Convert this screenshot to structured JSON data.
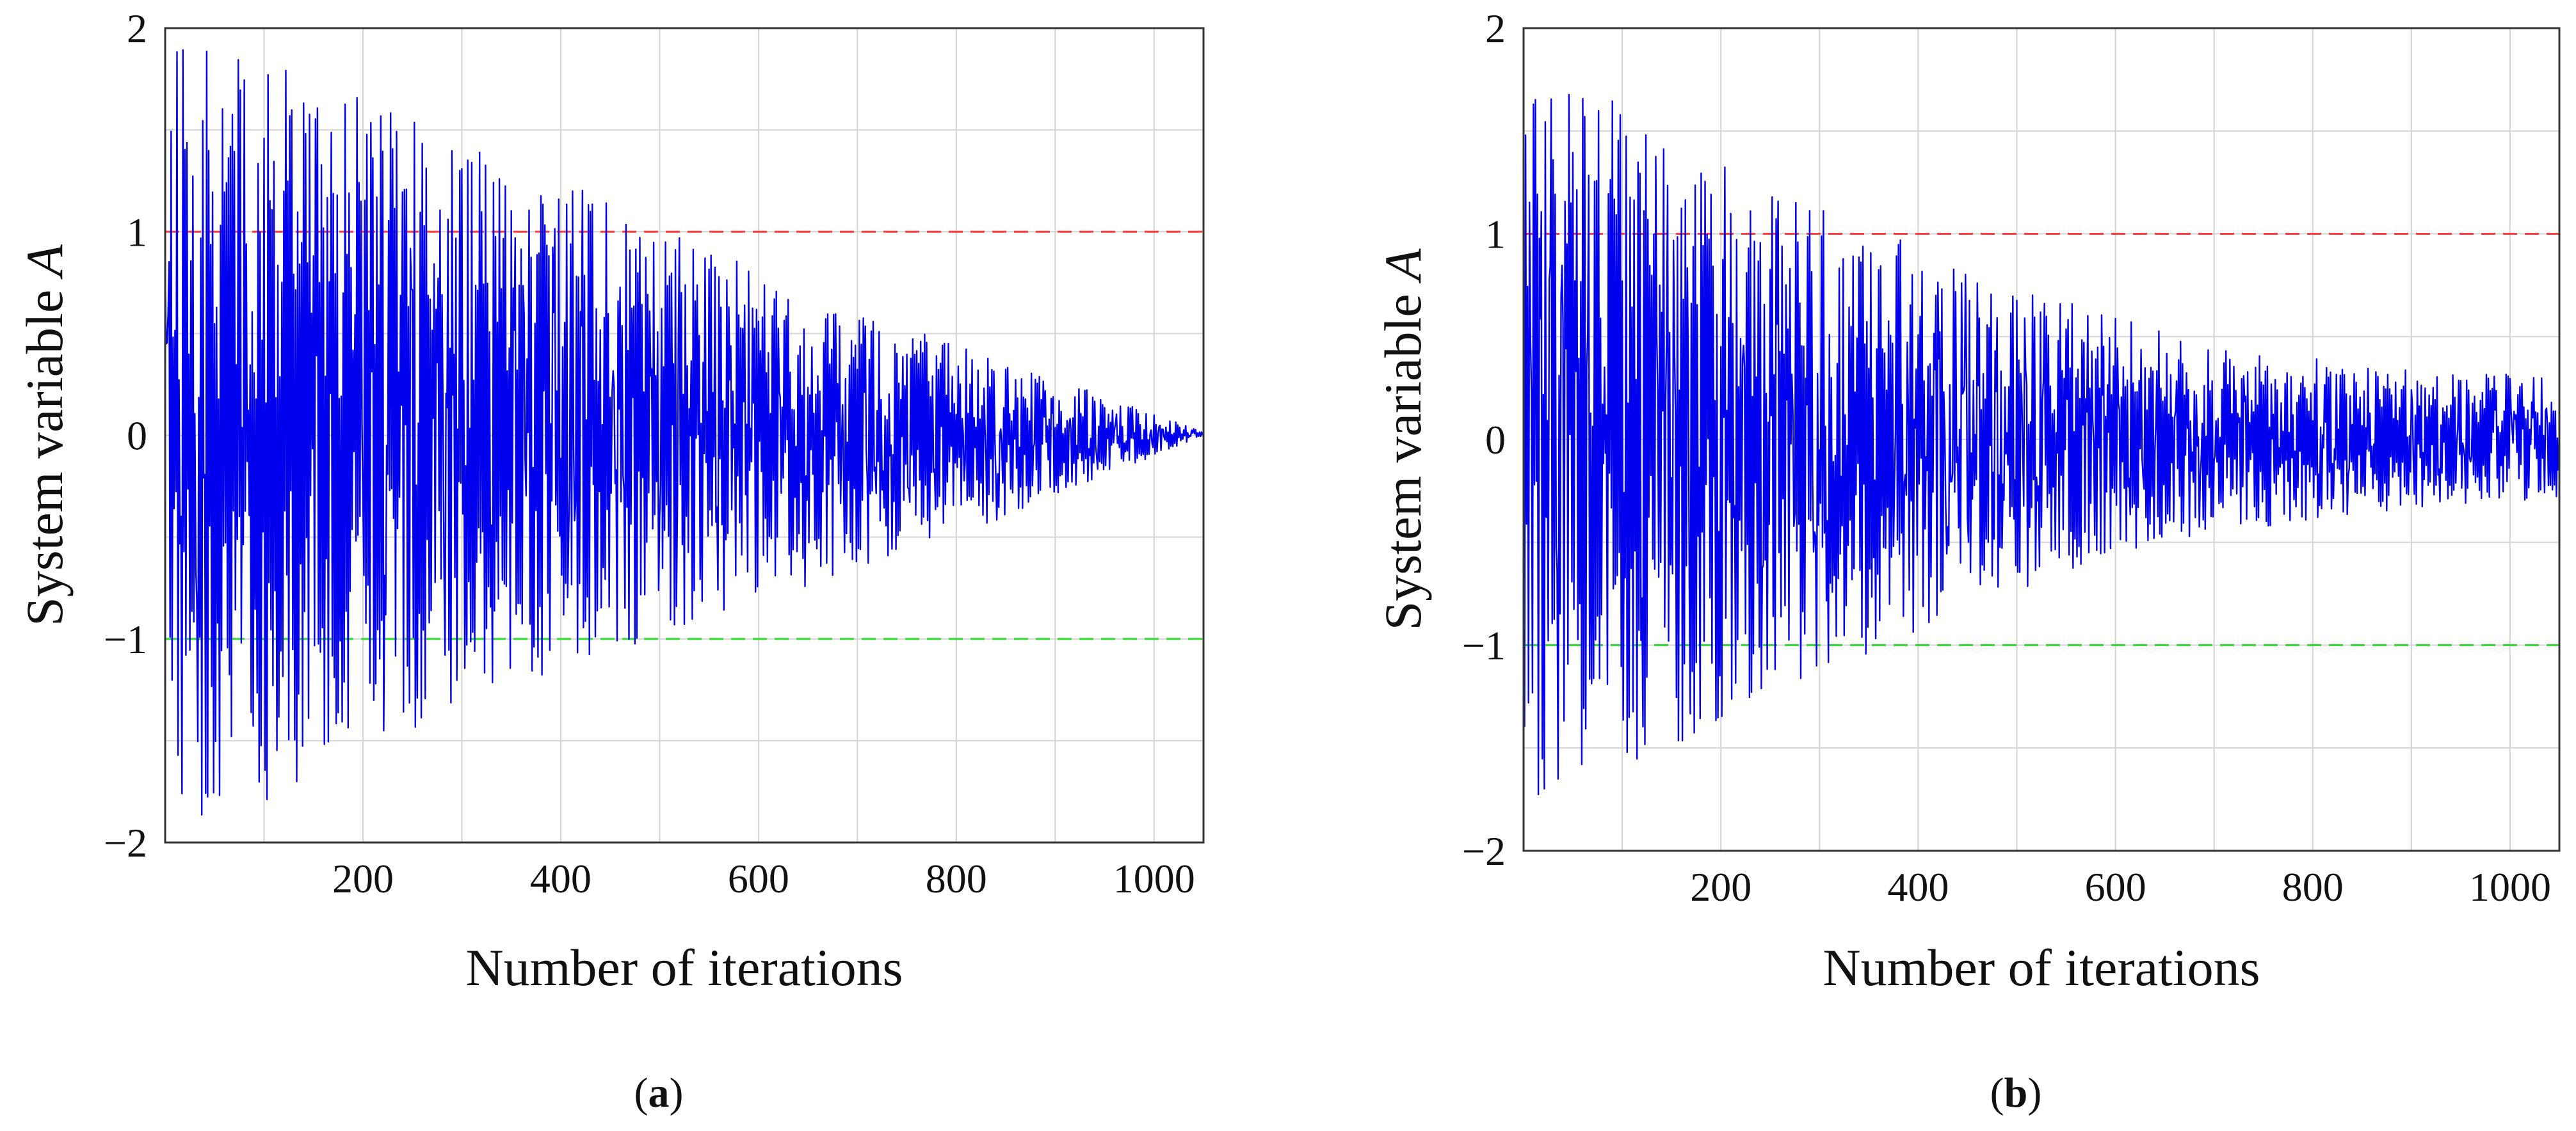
{
  "chart_data": [
    {
      "id": "a",
      "type": "line",
      "caption_letter": "a",
      "xlabel": "Number of iterations",
      "ylabel_text": "System variable ",
      "ylabel_var": "A",
      "xlim": [
        0,
        1050
      ],
      "ylim": [
        -2,
        2
      ],
      "xticks": [
        200,
        400,
        600,
        800,
        1000
      ],
      "xtick_labels": [
        "200",
        "400",
        "600",
        "800",
        "1000"
      ],
      "yticks": [
        -2,
        -1,
        0,
        1,
        2
      ],
      "ytick_labels": [
        "−2",
        "−1",
        "0",
        "1",
        "2"
      ],
      "grid": true,
      "reference_lines": [
        {
          "name": "upper-bound",
          "y": 1,
          "color": "#ff3b3b",
          "style": "dashed"
        },
        {
          "name": "lower-bound",
          "y": -1,
          "color": "#33dd33",
          "style": "dashed"
        }
      ],
      "series": [
        {
          "name": "System variable A",
          "color": "#0000ee",
          "n_points": 1050,
          "envelope_x": [
            0,
            100,
            200,
            300,
            400,
            500,
            600,
            700,
            800,
            900,
            1000,
            1050
          ],
          "envelope_upper": [
            2.0,
            1.85,
            1.65,
            1.45,
            1.25,
            1.05,
            0.8,
            0.6,
            0.45,
            0.28,
            0.1,
            0.02
          ],
          "envelope_lower": [
            -1.95,
            -1.8,
            -1.55,
            -1.35,
            -1.15,
            -1.0,
            -0.85,
            -0.65,
            -0.5,
            -0.3,
            -0.1,
            0.0
          ],
          "seed": 11
        }
      ]
    },
    {
      "id": "b",
      "type": "line",
      "caption_letter": "b",
      "xlabel": "Number of iterations",
      "ylabel_text": "System variable ",
      "ylabel_var": "A",
      "xlim": [
        0,
        1050
      ],
      "ylim": [
        -2,
        2
      ],
      "xticks": [
        200,
        400,
        600,
        800,
        1000
      ],
      "xtick_labels": [
        "200",
        "400",
        "600",
        "800",
        "1000"
      ],
      "yticks": [
        -2,
        -1,
        0,
        1,
        2
      ],
      "ytick_labels": [
        "−2",
        "−1",
        "0",
        "1",
        "2"
      ],
      "grid": true,
      "reference_lines": [
        {
          "name": "upper-bound",
          "y": 1,
          "color": "#ff3b3b",
          "style": "dashed"
        },
        {
          "name": "lower-bound",
          "y": -1,
          "color": "#33dd33",
          "style": "dashed"
        }
      ],
      "series": [
        {
          "name": "System variable A",
          "color": "#0000ee",
          "n_points": 1050,
          "envelope_x": [
            0,
            100,
            200,
            300,
            400,
            500,
            600,
            700,
            800,
            900,
            1000,
            1050
          ],
          "envelope_upper": [
            1.85,
            1.65,
            1.35,
            1.15,
            0.95,
            0.75,
            0.6,
            0.45,
            0.4,
            0.35,
            0.32,
            0.3
          ],
          "envelope_lower": [
            -1.8,
            -1.6,
            -1.4,
            -1.15,
            -0.95,
            -0.75,
            -0.55,
            -0.45,
            -0.4,
            -0.33,
            -0.3,
            -0.28
          ],
          "seed": 29
        }
      ]
    }
  ]
}
